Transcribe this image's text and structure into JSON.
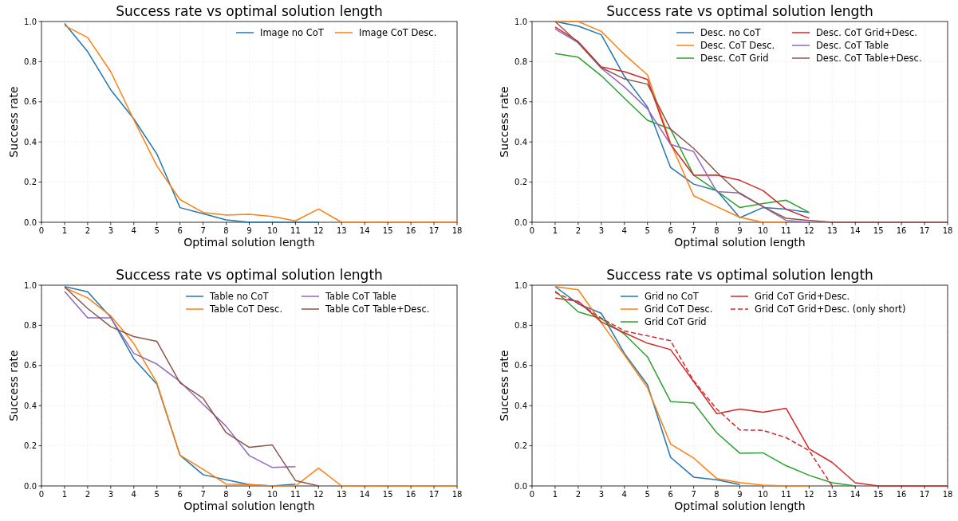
{
  "chart_data": [
    {
      "type": "line",
      "title": "Success rate vs optimal solution length",
      "xlabel": "Optimal solution length",
      "ylabel": "Success rate",
      "x": [
        1,
        2,
        3,
        4,
        5,
        6,
        7,
        8,
        9,
        10,
        11,
        12,
        13,
        14,
        15,
        16,
        17,
        18
      ],
      "series": [
        {
          "name": "Image no CoT",
          "color": "#1f77b4",
          "values": [
            0.99,
            0.85,
            0.66,
            0.515,
            0.34,
            0.073,
            0.043,
            0.012,
            0,
            0,
            0,
            0,
            null,
            null,
            null,
            null,
            null,
            null
          ]
        },
        {
          "name": "Image CoT Desc.",
          "color": "#ff7f0e",
          "values": [
            0.98,
            0.92,
            0.75,
            0.51,
            0.28,
            0.113,
            0.049,
            0.036,
            0.04,
            0.029,
            0.007,
            0.066,
            0,
            0,
            0,
            0,
            0,
            0
          ]
        }
      ],
      "xlim": [
        0,
        18
      ],
      "xticks": [
        0,
        1,
        2,
        3,
        4,
        5,
        6,
        7,
        8,
        9,
        10,
        11,
        12,
        13,
        14,
        15,
        16,
        17,
        18
      ],
      "ylim": [
        0,
        1
      ],
      "yticks": [
        {
          "value": 0,
          "label": "0.0"
        },
        {
          "value": 0.2,
          "label": "0.2"
        },
        {
          "value": 0.4,
          "label": "0.4"
        },
        {
          "value": 0.6,
          "label": "0.6"
        },
        {
          "value": 0.8,
          "label": "0.8"
        },
        {
          "value": 1,
          "label": "1.0"
        }
      ],
      "grid": true,
      "legend": "top right"
    },
    {
      "type": "line",
      "title": "Success rate vs optimal solution length",
      "xlabel": "Optimal solution length",
      "ylabel": "Success rate",
      "x": [
        1,
        2,
        3,
        4,
        5,
        6,
        7,
        8,
        9,
        10,
        11,
        12,
        13,
        14,
        15,
        16,
        17,
        18
      ],
      "series": [
        {
          "name": "Desc. no CoT",
          "color": "#1f77b4",
          "values": [
            1.0,
            0.977,
            0.934,
            0.727,
            0.574,
            0.273,
            0.19,
            0.158,
            0.023,
            0.073,
            0.065,
            0.049,
            null,
            null,
            null,
            null,
            null,
            null
          ]
        },
        {
          "name": "Desc. CoT Desc.",
          "color": "#ff7f0e",
          "values": [
            1.0,
            1.0,
            0.951,
            0.836,
            0.734,
            0.395,
            0.132,
            0.078,
            0.025,
            0,
            0,
            null,
            null,
            null,
            null,
            null,
            null,
            null
          ]
        },
        {
          "name": "Desc. CoT Grid",
          "color": "#2ca02c",
          "values": [
            0.84,
            0.822,
            0.73,
            0.618,
            0.508,
            0.464,
            0.235,
            0.156,
            0.073,
            0.093,
            0.11,
            0.049,
            null,
            null,
            null,
            null,
            null,
            null
          ]
        },
        {
          "name": "Desc. CoT Grid+Desc.",
          "color": "#d62728",
          "values": [
            0.973,
            0.9,
            0.774,
            0.75,
            0.711,
            0.388,
            0.234,
            0.235,
            0.209,
            0.158,
            0.065,
            0.02,
            null,
            null,
            null,
            null,
            null,
            null
          ]
        },
        {
          "name": "Desc. CoT Table",
          "color": "#9467bd",
          "values": [
            0.963,
            0.894,
            0.767,
            0.674,
            0.565,
            0.388,
            0.352,
            0.153,
            0.146,
            0.078,
            0.009,
            0,
            null,
            null,
            null,
            null,
            null,
            null
          ]
        },
        {
          "name": "Desc. CoT Table+Desc.",
          "color": "#8c564b",
          "values": [
            1.0,
            0.894,
            0.77,
            0.714,
            0.688,
            0.464,
            0.368,
            0.249,
            0.142,
            0.078,
            0.02,
            0.009,
            0,
            0,
            0,
            0,
            0,
            0
          ]
        }
      ],
      "xlim": [
        0,
        18
      ],
      "xticks": [
        0,
        1,
        2,
        3,
        4,
        5,
        6,
        7,
        8,
        9,
        10,
        11,
        12,
        13,
        14,
        15,
        16,
        17,
        18
      ],
      "ylim": [
        0,
        1
      ],
      "yticks": [
        {
          "value": 0,
          "label": "0.0"
        },
        {
          "value": 0.2,
          "label": "0.2"
        },
        {
          "value": 0.4,
          "label": "0.4"
        },
        {
          "value": 0.6,
          "label": "0.6"
        },
        {
          "value": 0.8,
          "label": "0.8"
        },
        {
          "value": 1,
          "label": "1.0"
        }
      ],
      "grid": true,
      "legend": "top right"
    },
    {
      "type": "line",
      "title": "Success rate vs optimal solution length",
      "xlabel": "Optimal solution length",
      "ylabel": "Success rate",
      "x": [
        1,
        2,
        3,
        4,
        5,
        6,
        7,
        8,
        9,
        10,
        11,
        12,
        13,
        14,
        15,
        16,
        17,
        18
      ],
      "series": [
        {
          "name": "Table no CoT",
          "color": "#1f77b4",
          "values": [
            0.993,
            0.967,
            0.84,
            0.633,
            0.507,
            0.153,
            0.056,
            0.031,
            0.007,
            0,
            0.009,
            null,
            null,
            null,
            null,
            null,
            null,
            null
          ]
        },
        {
          "name": "Table CoT Desc.",
          "color": "#ff7f0e",
          "values": [
            0.987,
            0.937,
            0.847,
            0.709,
            0.513,
            0.153,
            0.083,
            0.009,
            0.007,
            0,
            0,
            0.089,
            0,
            0,
            0,
            0,
            0,
            0
          ]
        },
        {
          "name": "Table CoT Table",
          "color": "#9467bd",
          "values": [
            0.969,
            0.837,
            0.837,
            0.66,
            0.607,
            0.52,
            0.407,
            0.297,
            0.151,
            0.092,
            0.096,
            null,
            null,
            null,
            null,
            null,
            null,
            null
          ]
        },
        {
          "name": "Table CoT Table+Desc.",
          "color": "#8c564b",
          "values": [
            0.991,
            0.884,
            0.793,
            0.744,
            0.72,
            0.513,
            0.437,
            0.265,
            0.192,
            0.204,
            0.027,
            0,
            null,
            null,
            null,
            null,
            null,
            null
          ]
        }
      ],
      "xlim": [
        0,
        18
      ],
      "xticks": [
        0,
        1,
        2,
        3,
        4,
        5,
        6,
        7,
        8,
        9,
        10,
        11,
        12,
        13,
        14,
        15,
        16,
        17,
        18
      ],
      "ylim": [
        0,
        1
      ],
      "yticks": [
        {
          "value": 0,
          "label": "0.0"
        },
        {
          "value": 0.2,
          "label": "0.2"
        },
        {
          "value": 0.4,
          "label": "0.4"
        },
        {
          "value": 0.6,
          "label": "0.6"
        },
        {
          "value": 0.8,
          "label": "0.8"
        },
        {
          "value": 1,
          "label": "1.0"
        }
      ],
      "grid": true,
      "legend": "top right"
    },
    {
      "type": "line",
      "title": "Success rate vs optimal solution length",
      "xlabel": "Optimal solution length",
      "ylabel": "Success rate",
      "x": [
        1,
        2,
        3,
        4,
        5,
        6,
        7,
        8,
        9,
        10,
        11,
        12,
        13,
        14,
        15,
        16,
        17,
        18
      ],
      "series": [
        {
          "name": "Grid no CoT",
          "color": "#1f77b4",
          "values": [
            0.993,
            0.907,
            0.86,
            0.66,
            0.504,
            0.143,
            0.044,
            0.031,
            0.007,
            null,
            null,
            null,
            null,
            null,
            null,
            null,
            null,
            null
          ]
        },
        {
          "name": "Grid CoT Desc.",
          "color": "#ff7f0e",
          "values": [
            0.993,
            0.977,
            0.813,
            0.653,
            0.489,
            0.209,
            0.139,
            0.037,
            0.017,
            0.004,
            0,
            0,
            null,
            null,
            null,
            null,
            null,
            null
          ]
        },
        {
          "name": "Grid CoT Grid",
          "color": "#2ca02c",
          "values": [
            0.971,
            0.867,
            0.833,
            0.756,
            0.643,
            0.421,
            0.413,
            0.265,
            0.163,
            0.165,
            0.101,
            0.053,
            0.016,
            0,
            null,
            null,
            null,
            null
          ]
        },
        {
          "name": "Grid CoT Grid+Desc.",
          "color": "#d62728",
          "values": [
            0.936,
            0.92,
            0.817,
            0.763,
            0.711,
            0.679,
            0.52,
            0.36,
            0.383,
            0.367,
            0.387,
            0.185,
            0.117,
            0.016,
            0,
            0,
            0,
            0
          ]
        },
        {
          "name": "Grid CoT Grid+Desc. (only short)",
          "color": "#d62728",
          "line_style": "dashed",
          "x": [
            1,
            2,
            3,
            4,
            5,
            6,
            7,
            8,
            9,
            10,
            11,
            12,
            13
          ],
          "values": [
            0.964,
            0.911,
            0.836,
            0.772,
            0.748,
            0.723,
            0.524,
            0.383,
            0.279,
            0.277,
            0.241,
            0.176,
            0
          ]
        }
      ],
      "xlim": [
        0,
        18
      ],
      "xticks": [
        0,
        1,
        2,
        3,
        4,
        5,
        6,
        7,
        8,
        9,
        10,
        11,
        12,
        13,
        14,
        15,
        16,
        17,
        18
      ],
      "ylim": [
        0,
        1
      ],
      "yticks": [
        {
          "value": 0,
          "label": "0.0"
        },
        {
          "value": 0.2,
          "label": "0.2"
        },
        {
          "value": 0.4,
          "label": "0.4"
        },
        {
          "value": 0.6,
          "label": "0.6"
        },
        {
          "value": 0.8,
          "label": "0.8"
        },
        {
          "value": 1,
          "label": "1.0"
        }
      ],
      "grid": true,
      "legend": "top right"
    }
  ]
}
